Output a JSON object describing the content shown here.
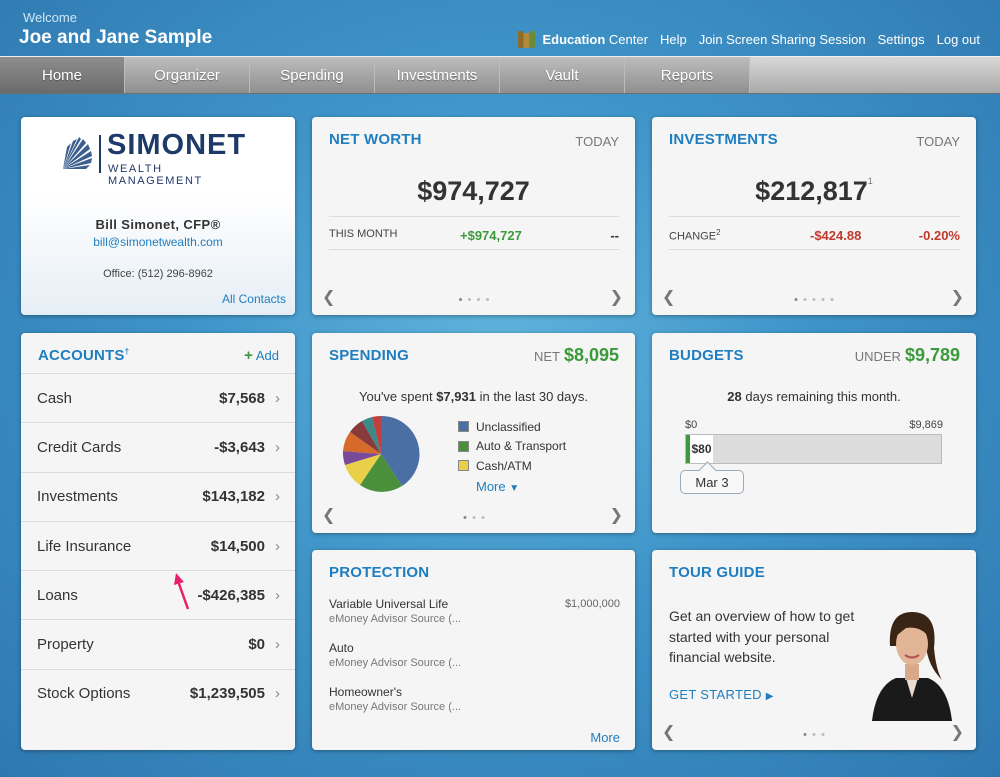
{
  "header": {
    "welcome": "Welcome",
    "user": "Joe and Jane Sample",
    "links": {
      "education_bold": "Education",
      "education_rest": "Center",
      "help": "Help",
      "join": "Join Screen Sharing Session",
      "settings": "Settings",
      "logout": "Log out"
    }
  },
  "nav": {
    "tabs": [
      "Home",
      "Organizer",
      "Spending",
      "Investments",
      "Vault",
      "Reports"
    ],
    "active": "Home"
  },
  "contact": {
    "logo_name": "SIMONET",
    "logo_sub": "WEALTH MANAGEMENT",
    "name": "Bill Simonet, CFP®",
    "email": "bill@simonetwealth.com",
    "office": "Office: (512) 296-8962",
    "all_contacts": "All Contacts"
  },
  "accounts": {
    "title": "ACCOUNTS",
    "title_mark": "†",
    "add_label": "Add",
    "add_icon": "+",
    "rows": [
      {
        "label": "Cash",
        "value": "$7,568"
      },
      {
        "label": "Credit Cards",
        "value": "-$3,643"
      },
      {
        "label": "Investments",
        "value": "$143,182"
      },
      {
        "label": "Life Insurance",
        "value": "$14,500"
      },
      {
        "label": "Loans",
        "value": "-$426,385"
      },
      {
        "label": "Property",
        "value": "$0"
      },
      {
        "label": "Stock Options",
        "value": "$1,239,505"
      }
    ],
    "chevron": "›"
  },
  "net_worth": {
    "title": "NET WORTH",
    "period": "TODAY",
    "value": "$974,727",
    "row_label": "THIS MONTH",
    "row_change": "+$974,727",
    "row_pct": "--",
    "page_count": 4,
    "page_active": 1
  },
  "investments": {
    "title": "INVESTMENTS",
    "period": "TODAY",
    "value": "$212,817",
    "value_sup": "1",
    "row_label": "CHANGE",
    "row_label_sup": "2",
    "row_change": "-$424.88",
    "row_pct": "-0.20%",
    "page_count": 5,
    "page_active": 1
  },
  "spending": {
    "title": "SPENDING",
    "net_label": "NET",
    "net_value": "$8,095",
    "text_pre": "You've spent",
    "text_amount": "$7,931",
    "text_post": "in the last 30 days.",
    "legend": [
      {
        "label": "Unclassified",
        "color": "#4a6fa5"
      },
      {
        "label": "Auto & Transport",
        "color": "#4a8f3a"
      },
      {
        "label": "Cash/ATM",
        "color": "#e9d048"
      }
    ],
    "more": "More",
    "page_count": 3,
    "page_active": 1
  },
  "budgets": {
    "title": "BUDGETS",
    "under_label": "UNDER",
    "under_value": "$9,789",
    "days": "28",
    "days_text": "days remaining this month.",
    "bar_min": "$0",
    "bar_max": "$9,869",
    "bar_amount": "$80",
    "bar_fraction": 0.008,
    "date": "Mar 3"
  },
  "protection": {
    "title": "PROTECTION",
    "items": [
      {
        "name": "Variable Universal Life",
        "source": "eMoney Advisor Source (...",
        "amount": "$1,000,000"
      },
      {
        "name": "Auto",
        "source": "eMoney Advisor Source (..."
      },
      {
        "name": "Homeowner's",
        "source": "eMoney Advisor Source (..."
      }
    ],
    "more": "More"
  },
  "tour": {
    "title": "TOUR GUIDE",
    "text": "Get an overview of how to get started with your personal financial website.",
    "link": "GET STARTED",
    "page_count": 3,
    "page_active": 1
  },
  "colors": {
    "accent": "#1f7ec0",
    "positive": "#3b9a3b",
    "negative": "#c0392b"
  }
}
